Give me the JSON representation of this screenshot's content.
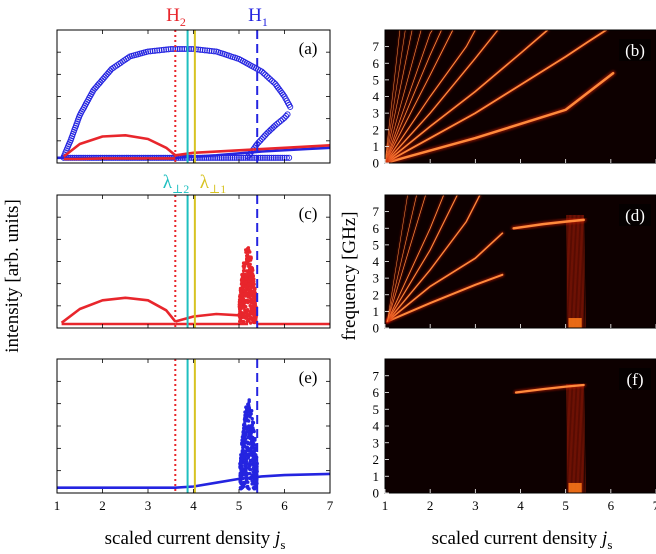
{
  "figure": {
    "left_ylabel": "intensity [arb. units]",
    "right_ylabel": "frequency [GHz]",
    "xlabel_text": "scaled current density ",
    "xlabel_var": "j",
    "xlabel_sub": "s",
    "marker_labels": [
      {
        "main": "H",
        "sub": "2",
        "color": "#e8262c"
      },
      {
        "main": "H",
        "sub": "1",
        "color": "#2424e0"
      },
      {
        "main": "λ",
        "sub": "⊥2",
        "color": "#1fbfc0"
      },
      {
        "main": "λ",
        "sub": "⊥1",
        "color": "#d7c322"
      }
    ]
  },
  "chart_data": [
    {
      "panel": "(a)",
      "type": "line",
      "xlim": [
        1,
        7
      ],
      "x_ticks": [
        1,
        2,
        3,
        4,
        5,
        6,
        7
      ],
      "grid": false,
      "show_x_tick_labels": false,
      "vlines": [
        {
          "x": 3.6,
          "style": "dotted",
          "color": "#e8262c"
        },
        {
          "x": 3.87,
          "style": "solid",
          "color": "#1fbfc0"
        },
        {
          "x": 4.03,
          "style": "solid",
          "color": "#d7c322"
        },
        {
          "x": 5.4,
          "style": "dashed",
          "color": "#2424e0"
        }
      ],
      "series": [
        {
          "color": "#2424e0",
          "style": "circles",
          "points": [
            [
              1.15,
              0.02
            ],
            [
              1.3,
              0.15
            ],
            [
              1.5,
              0.35
            ],
            [
              1.8,
              0.55
            ],
            [
              2.2,
              0.72
            ],
            [
              2.6,
              0.82
            ],
            [
              3.0,
              0.86
            ],
            [
              3.5,
              0.88
            ],
            [
              4.0,
              0.88
            ],
            [
              4.5,
              0.86
            ],
            [
              5.0,
              0.8
            ],
            [
              5.5,
              0.7
            ],
            [
              5.8,
              0.6
            ],
            [
              6.0,
              0.5
            ],
            [
              6.15,
              0.4
            ]
          ]
        },
        {
          "color": "#2424e0",
          "style": "circles",
          "points": [
            [
              5.2,
              0.02
            ],
            [
              5.4,
              0.12
            ],
            [
              5.6,
              0.2
            ],
            [
              5.8,
              0.27
            ],
            [
              6.0,
              0.33
            ],
            [
              6.1,
              0.37
            ]
          ]
        },
        {
          "color": "#2424e0",
          "style": "circles",
          "points": [
            [
              1.15,
              0.01
            ],
            [
              2.0,
              0.01
            ],
            [
              3.0,
              0.01
            ],
            [
              4.0,
              0.01
            ],
            [
              5.0,
              0.01
            ],
            [
              6.0,
              0.01
            ],
            [
              6.15,
              0.01
            ]
          ]
        },
        {
          "color": "#2424e0",
          "style": "line",
          "points": [
            [
              1.0,
              0.01
            ],
            [
              3.6,
              0.01
            ],
            [
              4.5,
              0.03
            ],
            [
              5.5,
              0.06
            ],
            [
              6.5,
              0.08
            ],
            [
              7.0,
              0.09
            ]
          ]
        },
        {
          "color": "#e8262c",
          "style": "line",
          "points": [
            [
              1.15,
              0.02
            ],
            [
              1.5,
              0.12
            ],
            [
              2.0,
              0.18
            ],
            [
              2.5,
              0.19
            ],
            [
              3.0,
              0.16
            ],
            [
              3.4,
              0.09
            ],
            [
              3.6,
              0.03
            ],
            [
              4.0,
              0.05
            ],
            [
              5.0,
              0.07
            ],
            [
              6.0,
              0.09
            ],
            [
              7.0,
              0.11
            ]
          ]
        },
        {
          "color": "#e8262c",
          "style": "line",
          "points": [
            [
              1.15,
              0.0
            ],
            [
              1.5,
              0.0
            ],
            [
              2.0,
              0.005
            ],
            [
              2.5,
              0.005
            ],
            [
              3.0,
              0.005
            ],
            [
              3.6,
              0.005
            ]
          ]
        }
      ]
    },
    {
      "panel": "(c)",
      "type": "line",
      "xlim": [
        1,
        7
      ],
      "x_ticks": [
        1,
        2,
        3,
        4,
        5,
        6,
        7
      ],
      "grid": false,
      "show_x_tick_labels": false,
      "vlines": [
        {
          "x": 3.6,
          "style": "dotted",
          "color": "#e8262c"
        },
        {
          "x": 3.87,
          "style": "solid",
          "color": "#1fbfc0"
        },
        {
          "x": 4.03,
          "style": "solid",
          "color": "#d7c322"
        },
        {
          "x": 5.4,
          "style": "dashed",
          "color": "#2424e0"
        }
      ],
      "series": [
        {
          "color": "#e8262c",
          "style": "line",
          "points": [
            [
              1.1,
              0.01
            ],
            [
              1.5,
              0.12
            ],
            [
              2.0,
              0.19
            ],
            [
              2.5,
              0.21
            ],
            [
              3.0,
              0.19
            ],
            [
              3.4,
              0.11
            ],
            [
              3.6,
              0.02
            ]
          ]
        },
        {
          "color": "#e8262c",
          "style": "line",
          "points": [
            [
              1.1,
              0.0
            ],
            [
              3.6,
              0.0
            ]
          ]
        },
        {
          "color": "#e8262c",
          "style": "line",
          "points": [
            [
              3.6,
              0.02
            ],
            [
              4.0,
              0.06
            ],
            [
              4.5,
              0.08
            ],
            [
              5.0,
              0.07
            ],
            [
              5.2,
              0.05
            ]
          ]
        },
        {
          "color": "#e8262c",
          "style": "line",
          "points": [
            [
              3.6,
              0.0
            ],
            [
              5.2,
              0.0
            ]
          ]
        },
        {
          "color": "#e8262c",
          "style": "scatter-burst",
          "x_range": [
            5.0,
            5.38
          ],
          "y_top": [
            0.18,
            0.62
          ]
        },
        {
          "color": "#e8262c",
          "style": "line",
          "points": [
            [
              5.38,
              0.0
            ],
            [
              7.0,
              0.0
            ]
          ]
        }
      ]
    },
    {
      "panel": "(e)",
      "type": "line",
      "xlim": [
        1,
        7
      ],
      "x_ticks": [
        1,
        2,
        3,
        4,
        5,
        6,
        7
      ],
      "grid": false,
      "show_x_tick_labels": true,
      "vlines": [
        {
          "x": 3.6,
          "style": "dotted",
          "color": "#e8262c"
        },
        {
          "x": 3.87,
          "style": "solid",
          "color": "#1fbfc0"
        },
        {
          "x": 4.03,
          "style": "solid",
          "color": "#d7c322"
        },
        {
          "x": 5.4,
          "style": "dashed",
          "color": "#2424e0"
        }
      ],
      "series": [
        {
          "color": "#2424e0",
          "style": "line",
          "points": [
            [
              1.0,
              0.01
            ],
            [
              3.6,
              0.01
            ],
            [
              4.0,
              0.02
            ],
            [
              4.5,
              0.05
            ],
            [
              5.0,
              0.08
            ],
            [
              5.5,
              0.1
            ],
            [
              6.0,
              0.11
            ],
            [
              7.0,
              0.12
            ]
          ]
        },
        {
          "color": "#2424e0",
          "style": "scatter-burst",
          "x_range": [
            5.02,
            5.4
          ],
          "y_top": [
            0.2,
            0.72
          ]
        }
      ]
    },
    {
      "panel": "(b)",
      "type": "heatmap",
      "xlim": [
        1,
        7
      ],
      "ylim": [
        0,
        8
      ],
      "x_ticks": [
        1,
        2,
        3,
        4,
        5,
        6,
        7
      ],
      "y_ticks": [
        0,
        1,
        2,
        3,
        4,
        5,
        6,
        7
      ],
      "show_x_tick_labels": false,
      "ridges": [
        {
          "points": [
            [
              1.0,
              0.0
            ],
            [
              3.0,
              1.5
            ],
            [
              5.0,
              3.2
            ],
            [
              6.05,
              5.4
            ]
          ],
          "lw": 2.5
        },
        {
          "points": [
            [
              1.0,
              0.0
            ],
            [
              2.0,
              1.5
            ],
            [
              3.0,
              3.0
            ],
            [
              4.0,
              4.7
            ],
            [
              5.0,
              6.4
            ],
            [
              5.5,
              7.3
            ],
            [
              5.9,
              8.0
            ]
          ],
          "lw": 1.8
        },
        {
          "points": [
            [
              1.0,
              0.0
            ],
            [
              2.0,
              2.2
            ],
            [
              3.0,
              4.3
            ],
            [
              4.0,
              6.6
            ],
            [
              4.6,
              8.0
            ]
          ],
          "lw": 1.6
        },
        {
          "points": [
            [
              1.0,
              0.0
            ],
            [
              2.0,
              3.0
            ],
            [
              3.0,
              6.3
            ],
            [
              3.5,
              8.0
            ]
          ],
          "lw": 1.3
        },
        {
          "points": [
            [
              1.0,
              0.0
            ],
            [
              2.0,
              4.0
            ],
            [
              2.8,
              7.0
            ],
            [
              3.0,
              8.0
            ]
          ],
          "lw": 1.1
        },
        {
          "points": [
            [
              1.0,
              0.0
            ],
            [
              2.0,
              5.3
            ],
            [
              2.5,
              8.0
            ]
          ],
          "lw": 0.9
        },
        {
          "points": [
            [
              1.0,
              0.0
            ],
            [
              2.0,
              6.5
            ],
            [
              2.25,
              8.0
            ]
          ],
          "lw": 0.8
        },
        {
          "points": [
            [
              1.0,
              0.0
            ],
            [
              2.0,
              7.8
            ],
            [
              2.05,
              8.0
            ]
          ],
          "lw": 0.7
        },
        {
          "points": [
            [
              1.0,
              0.0
            ],
            [
              1.8,
              8.0
            ]
          ],
          "lw": 0.6
        },
        {
          "points": [
            [
              1.0,
              0.0
            ],
            [
              1.6,
              8.0
            ]
          ],
          "lw": 0.6
        },
        {
          "points": [
            [
              1.0,
              0.0
            ],
            [
              1.45,
              8.0
            ]
          ],
          "lw": 0.5
        },
        {
          "points": [
            [
              1.0,
              0.0
            ],
            [
              1.33,
              8.0
            ]
          ],
          "lw": 0.5
        }
      ]
    },
    {
      "panel": "(d)",
      "type": "heatmap",
      "xlim": [
        1,
        7
      ],
      "ylim": [
        0,
        8
      ],
      "x_ticks": [
        1,
        2,
        3,
        4,
        5,
        6,
        7
      ],
      "y_ticks": [
        0,
        1,
        2,
        3,
        4,
        5,
        6,
        7
      ],
      "show_x_tick_labels": false,
      "band": {
        "x_range": [
          5.02,
          5.4
        ],
        "y_range": [
          0,
          6.8
        ]
      },
      "ridges": [
        {
          "points": [
            [
              1.05,
              0.4
            ],
            [
              2.0,
              1.5
            ],
            [
              3.0,
              2.6
            ],
            [
              3.6,
              3.2
            ]
          ],
          "lw": 2.0
        },
        {
          "points": [
            [
              1.05,
              0.4
            ],
            [
              2.0,
              2.5
            ],
            [
              3.0,
              4.2
            ],
            [
              3.6,
              5.7
            ]
          ],
          "lw": 1.6
        },
        {
          "points": [
            [
              3.85,
              6.0
            ],
            [
              4.5,
              6.25
            ],
            [
              5.0,
              6.4
            ],
            [
              5.4,
              6.5
            ]
          ],
          "lw": 2.5
        },
        {
          "points": [
            [
              1.05,
              0.4
            ],
            [
              2.0,
              3.5
            ],
            [
              2.8,
              6.4
            ],
            [
              3.1,
              8.0
            ]
          ],
          "lw": 1.3
        },
        {
          "points": [
            [
              1.05,
              0.4
            ],
            [
              2.0,
              4.7
            ],
            [
              2.6,
              8.0
            ]
          ],
          "lw": 1.1
        },
        {
          "points": [
            [
              1.05,
              0.4
            ],
            [
              2.0,
              6.0
            ],
            [
              2.3,
              8.0
            ]
          ],
          "lw": 0.9
        },
        {
          "points": [
            [
              1.05,
              0.4
            ],
            [
              1.9,
              8.0
            ]
          ],
          "lw": 0.7
        },
        {
          "points": [
            [
              1.05,
              0.4
            ],
            [
              1.7,
              8.0
            ]
          ],
          "lw": 0.6
        },
        {
          "points": [
            [
              1.05,
              0.4
            ],
            [
              1.5,
              8.0
            ]
          ],
          "lw": 0.5
        }
      ]
    },
    {
      "panel": "(f)",
      "type": "heatmap",
      "xlim": [
        1,
        7
      ],
      "ylim": [
        0,
        8
      ],
      "x_ticks": [
        1,
        2,
        3,
        4,
        5,
        6,
        7
      ],
      "y_ticks": [
        0,
        1,
        2,
        3,
        4,
        5,
        6,
        7
      ],
      "show_x_tick_labels": true,
      "band": {
        "x_range": [
          5.02,
          5.4
        ],
        "y_range": [
          0,
          6.5
        ]
      },
      "ridges": [
        {
          "points": [
            [
              3.9,
              6.0
            ],
            [
              4.5,
              6.2
            ],
            [
              5.0,
              6.35
            ],
            [
              5.4,
              6.45
            ]
          ],
          "lw": 2.2
        }
      ]
    }
  ]
}
